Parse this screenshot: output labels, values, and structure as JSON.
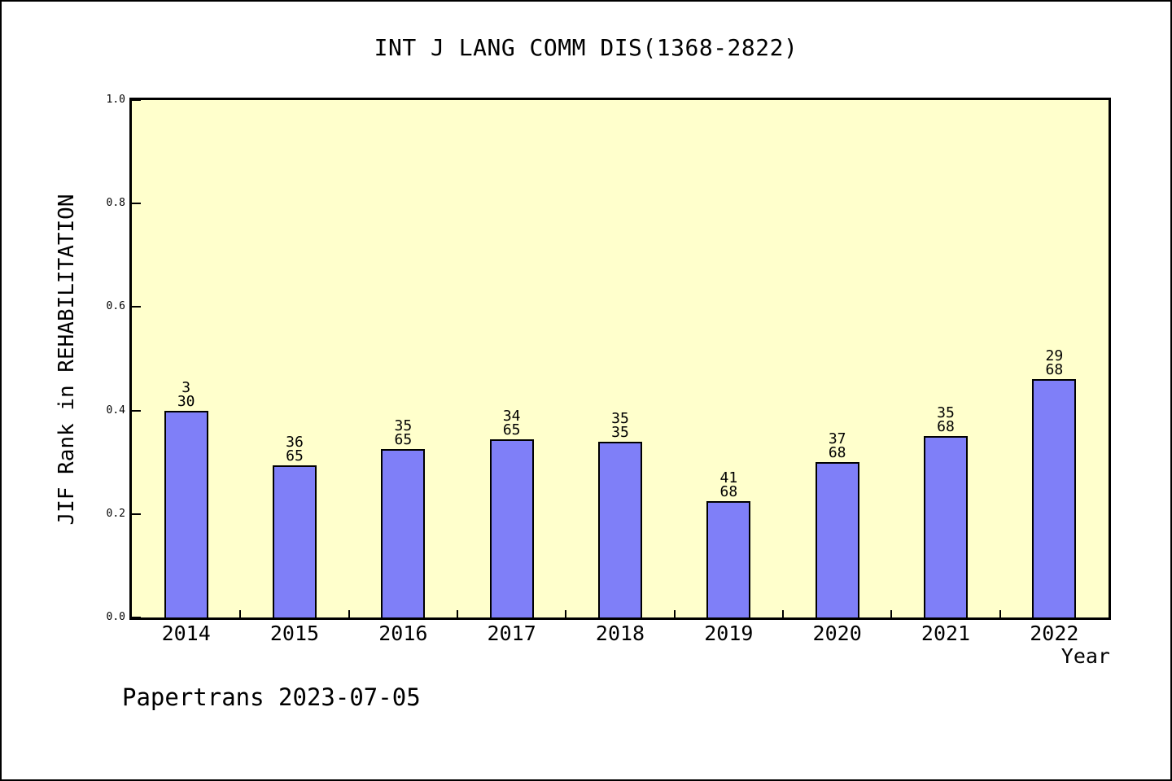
{
  "title": "INT J LANG COMM DIS(1368-2822)",
  "footer": "Papertrans 2023-07-05",
  "chart_data": {
    "type": "bar",
    "title": "INT J LANG COMM DIS(1368-2822)",
    "xlabel": "Year",
    "ylabel": "JIF Rank in REHABILITATION",
    "categories": [
      "2014",
      "2015",
      "2016",
      "2017",
      "2018",
      "2019",
      "2020",
      "2021",
      "2022"
    ],
    "values": [
      0.4,
      0.294,
      0.325,
      0.344,
      0.34,
      0.225,
      0.301,
      0.351,
      0.461
    ],
    "bar_labels": [
      {
        "numerator": "3",
        "denominator": "30"
      },
      {
        "numerator": "36",
        "denominator": "65"
      },
      {
        "numerator": "35",
        "denominator": "65"
      },
      {
        "numerator": "34",
        "denominator": "65"
      },
      {
        "numerator": "35",
        "denominator": "35"
      },
      {
        "numerator": "41",
        "denominator": "68"
      },
      {
        "numerator": "37",
        "denominator": "68"
      },
      {
        "numerator": "35",
        "denominator": "68"
      },
      {
        "numerator": "29",
        "denominator": "68"
      }
    ],
    "ylim": [
      0.0,
      1.0
    ],
    "yticks": [
      {
        "value": 0.0,
        "label": "0.0"
      },
      {
        "value": 0.2,
        "label": "0.2"
      },
      {
        "value": 0.4,
        "label": "0.4"
      },
      {
        "value": 0.6,
        "label": "0.6"
      },
      {
        "value": 0.8,
        "label": "0.8"
      },
      {
        "value": 1.0,
        "label": "1.0"
      }
    ],
    "grid": false,
    "legend": null,
    "colors": {
      "bar_fill": "#7f7ff8",
      "bar_border": "#000000",
      "plot_background": "#ffffcc",
      "page_background": "#ffffff",
      "text": "#000000"
    }
  }
}
